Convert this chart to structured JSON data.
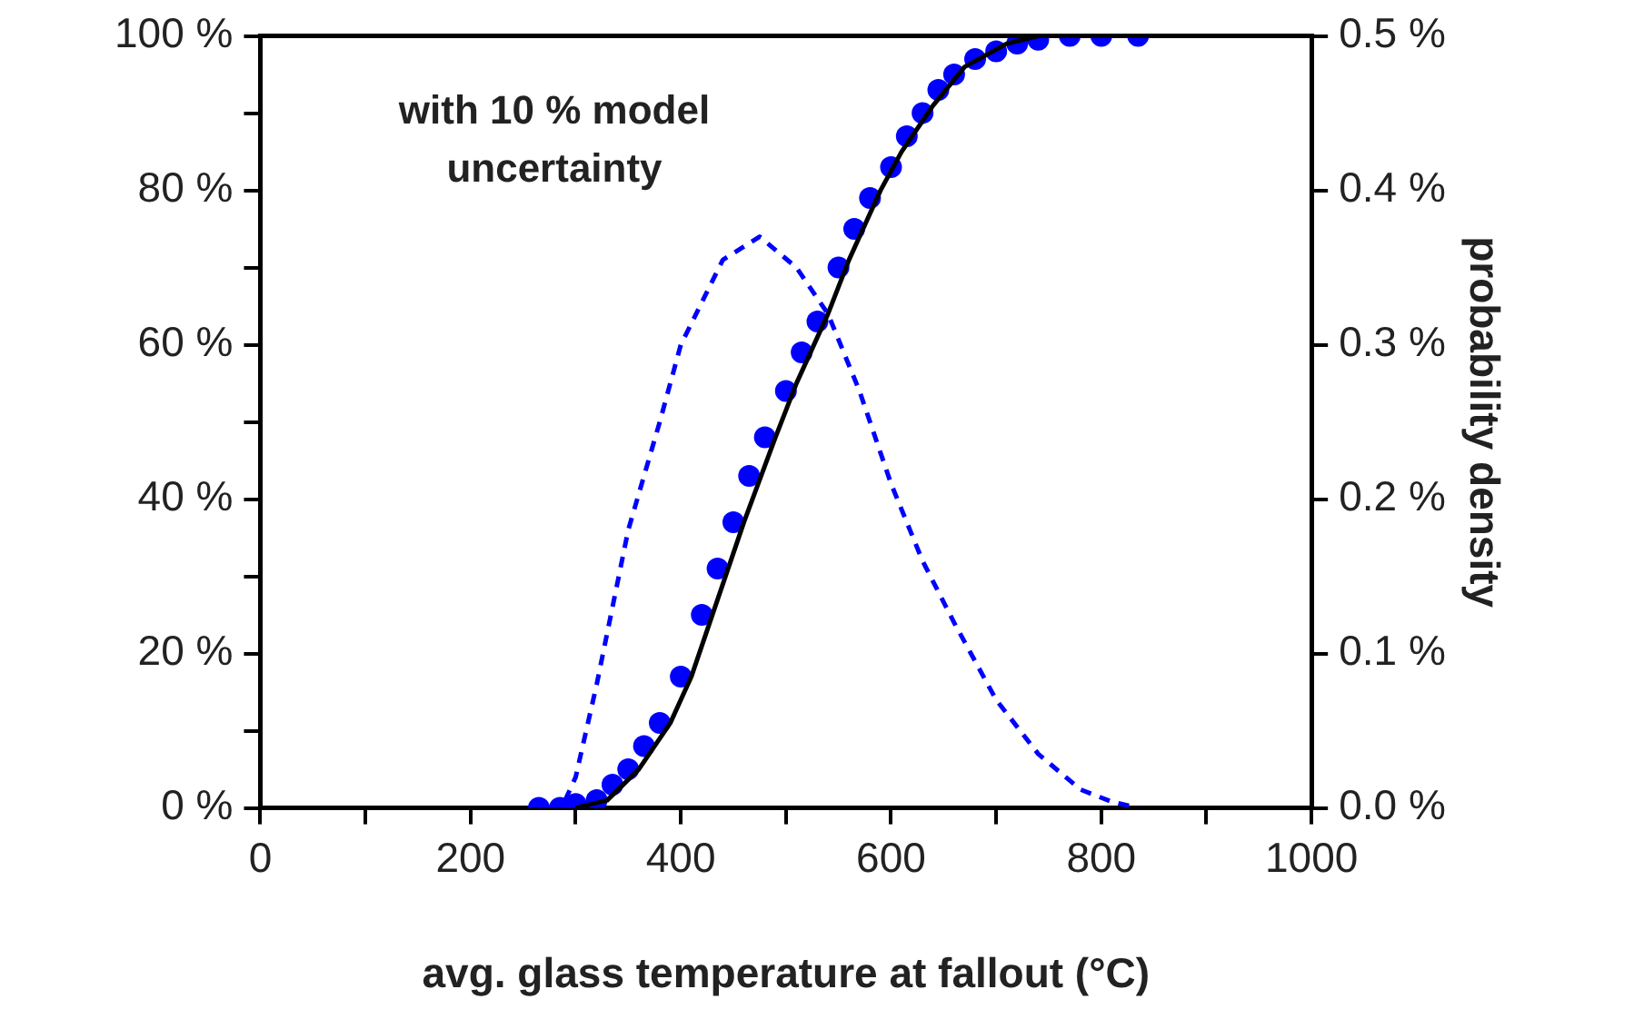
{
  "chart_data": {
    "type": "line",
    "xlabel": "avg. glass temperature at fallout (°C)",
    "y2label": "probability density",
    "annotations": [
      "with 10 % model uncertainty"
    ],
    "xlim": [
      0,
      1000
    ],
    "xticks": [
      0,
      {
        "value": 100,
        "label": null
      },
      200,
      {
        "value": 300,
        "label": null
      },
      400,
      {
        "value": 500,
        "label": null
      },
      600,
      {
        "value": 700,
        "label": null
      },
      800,
      {
        "value": 900,
        "label": null
      },
      1000
    ],
    "ylim": [
      0,
      100
    ],
    "yticks": [
      {
        "value": 0,
        "label": "0 %"
      },
      {
        "value": 10,
        "label": null
      },
      {
        "value": 20,
        "label": "20 %"
      },
      {
        "value": 30,
        "label": null
      },
      {
        "value": 40,
        "label": "40 %"
      },
      {
        "value": 50,
        "label": null
      },
      {
        "value": 60,
        "label": "60 %"
      },
      {
        "value": 70,
        "label": null
      },
      {
        "value": 80,
        "label": "80 %"
      },
      {
        "value": 90,
        "label": null
      },
      {
        "value": 100,
        "label": "100 %"
      }
    ],
    "y2lim": [
      0,
      0.5
    ],
    "y2ticks": [
      {
        "value": 0,
        "label": "0.0 %"
      },
      {
        "value": 0.1,
        "label": "0.1 %"
      },
      {
        "value": 0.2,
        "label": "0.2 %"
      },
      {
        "value": 0.3,
        "label": "0.3 %"
      },
      {
        "value": 0.4,
        "label": "0.4 %"
      },
      {
        "value": 0.5,
        "label": "0.5 %"
      }
    ],
    "grid": false,
    "legend": false,
    "series": [
      {
        "type": "line",
        "color": "#000000",
        "line_style": "solid",
        "marker": "none",
        "x": [
          300,
          330,
          360,
          390,
          410,
          430,
          460,
          490,
          510,
          540,
          560,
          590,
          610,
          640,
          670,
          710,
          740,
          800
        ],
        "values": [
          0,
          1,
          5,
          11,
          17,
          25,
          37,
          48,
          55,
          64,
          71,
          80,
          85,
          91,
          96,
          99,
          100,
          100
        ]
      },
      {
        "type": "scatter",
        "color": "#0000ff",
        "marker": "circle",
        "x": [
          265,
          285,
          300,
          320,
          335,
          350,
          365,
          380,
          400,
          420,
          435,
          450,
          465,
          480,
          500,
          515,
          530,
          550,
          565,
          580,
          600,
          615,
          630,
          645,
          660,
          680,
          700,
          720,
          740,
          770,
          800,
          835
        ],
        "values": [
          0,
          0,
          0.5,
          1,
          3,
          5,
          8,
          11,
          17,
          25,
          31,
          37,
          43,
          48,
          54,
          59,
          63,
          70,
          75,
          79,
          83,
          87,
          90,
          93,
          95,
          97,
          98,
          99,
          99.5,
          100,
          100,
          100
        ]
      },
      {
        "type": "line",
        "axis": "y2",
        "color": "#0000ff",
        "line_style": "dashed",
        "marker": "none",
        "x": [
          290,
          300,
          320,
          350,
          380,
          400,
          440,
          475,
          510,
          540,
          570,
          600,
          630,
          660,
          700,
          740,
          780,
          810,
          835
        ],
        "values": [
          0.005,
          0.02,
          0.08,
          0.18,
          0.25,
          0.3,
          0.355,
          0.37,
          0.35,
          0.32,
          0.27,
          0.21,
          0.16,
          0.12,
          0.07,
          0.035,
          0.012,
          0.004,
          0
        ]
      }
    ]
  }
}
